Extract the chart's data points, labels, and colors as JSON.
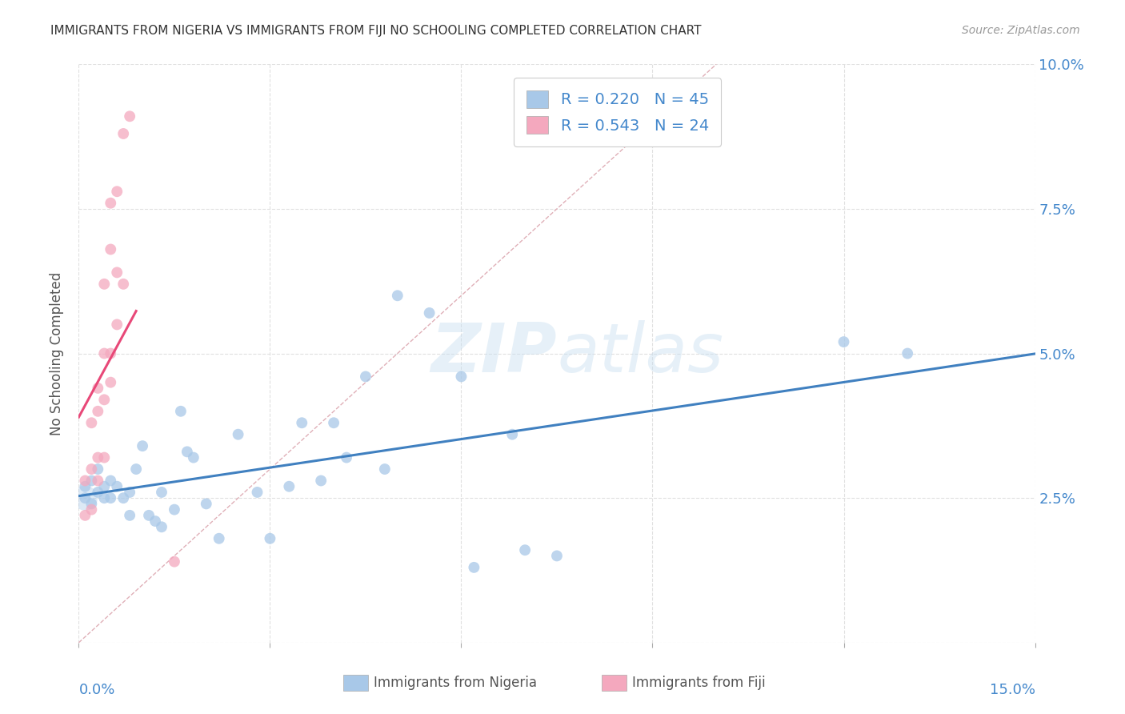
{
  "title": "IMMIGRANTS FROM NIGERIA VS IMMIGRANTS FROM FIJI NO SCHOOLING COMPLETED CORRELATION CHART",
  "source": "Source: ZipAtlas.com",
  "ylabel": "No Schooling Completed",
  "xlim": [
    0.0,
    0.15
  ],
  "ylim": [
    0.0,
    0.1
  ],
  "yticks": [
    0.0,
    0.025,
    0.05,
    0.075,
    0.1
  ],
  "yticklabels_right": [
    "",
    "2.5%",
    "5.0%",
    "7.5%",
    "10.0%"
  ],
  "xtick_left_label": "0.0%",
  "xtick_right_label": "15.0%",
  "nigeria_color": "#a8c8e8",
  "fiji_color": "#f4a8be",
  "nigeria_R": 0.22,
  "nigeria_N": 45,
  "fiji_R": 0.543,
  "fiji_N": 24,
  "legend_label_nigeria": "Immigrants from Nigeria",
  "legend_label_fiji": "Immigrants from Fiji",
  "nigeria_line_color": "#4080c0",
  "fiji_line_color": "#e84878",
  "diagonal_color": "#d0d0d0",
  "watermark": "ZIPatlas",
  "tick_label_color": "#4488cc",
  "grid_color": "#e0e0e0",
  "nigeria_x": [
    0.001,
    0.001,
    0.002,
    0.002,
    0.003,
    0.003,
    0.004,
    0.004,
    0.005,
    0.005,
    0.006,
    0.007,
    0.008,
    0.008,
    0.009,
    0.01,
    0.011,
    0.012,
    0.013,
    0.013,
    0.015,
    0.016,
    0.017,
    0.018,
    0.02,
    0.022,
    0.025,
    0.028,
    0.03,
    0.033,
    0.035,
    0.038,
    0.04,
    0.042,
    0.045,
    0.048,
    0.05,
    0.055,
    0.06,
    0.062,
    0.068,
    0.07,
    0.075,
    0.12,
    0.13
  ],
  "nigeria_y": [
    0.025,
    0.027,
    0.024,
    0.028,
    0.026,
    0.03,
    0.025,
    0.027,
    0.025,
    0.028,
    0.027,
    0.025,
    0.022,
    0.026,
    0.03,
    0.034,
    0.022,
    0.021,
    0.02,
    0.026,
    0.023,
    0.04,
    0.033,
    0.032,
    0.024,
    0.018,
    0.036,
    0.026,
    0.018,
    0.027,
    0.038,
    0.028,
    0.038,
    0.032,
    0.046,
    0.03,
    0.06,
    0.057,
    0.046,
    0.013,
    0.036,
    0.016,
    0.015,
    0.052,
    0.05
  ],
  "fiji_x": [
    0.001,
    0.001,
    0.002,
    0.002,
    0.002,
    0.003,
    0.003,
    0.003,
    0.003,
    0.004,
    0.004,
    0.004,
    0.004,
    0.005,
    0.005,
    0.005,
    0.005,
    0.006,
    0.006,
    0.006,
    0.007,
    0.007,
    0.008,
    0.015
  ],
  "fiji_y": [
    0.022,
    0.028,
    0.023,
    0.03,
    0.038,
    0.028,
    0.032,
    0.04,
    0.044,
    0.032,
    0.042,
    0.05,
    0.062,
    0.045,
    0.05,
    0.068,
    0.076,
    0.055,
    0.064,
    0.078,
    0.062,
    0.088,
    0.091,
    0.014
  ]
}
